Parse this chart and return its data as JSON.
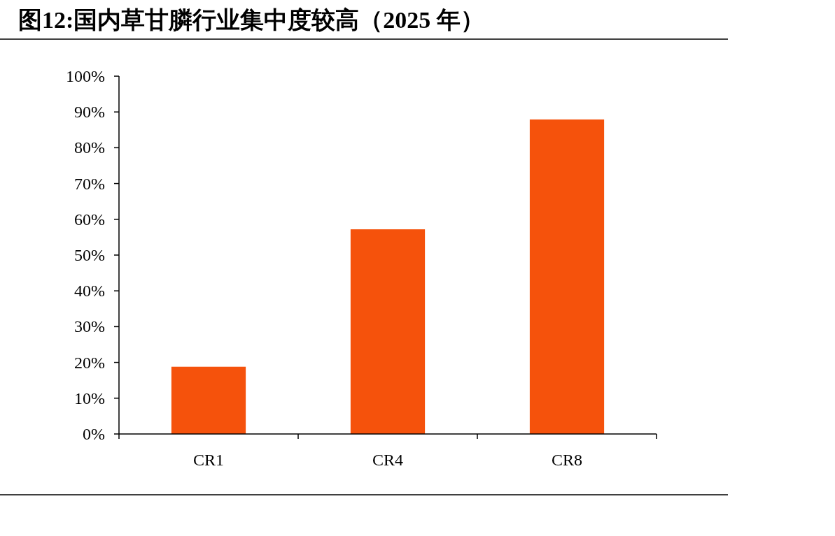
{
  "chart_data": {
    "type": "bar",
    "title": "图12:国内草甘膦行业集中度较高（2025 年）",
    "categories": [
      "CR1",
      "CR4",
      "CR8"
    ],
    "values": [
      18.8,
      57.2,
      87.9
    ],
    "color": "#f5520c",
    "ylim": [
      0,
      100
    ],
    "yticks": [
      {
        "value": 0,
        "label": "0%"
      },
      {
        "value": 10,
        "label": "10%"
      },
      {
        "value": 20,
        "label": "20%"
      },
      {
        "value": 30,
        "label": "30%"
      },
      {
        "value": 40,
        "label": "40%"
      },
      {
        "value": 50,
        "label": "50%"
      },
      {
        "value": 60,
        "label": "60%"
      },
      {
        "value": 70,
        "label": "70%"
      },
      {
        "value": 80,
        "label": "80%"
      },
      {
        "value": 90,
        "label": "90%"
      },
      {
        "value": 100,
        "label": "100%"
      }
    ],
    "grid": false,
    "legend": false
  }
}
